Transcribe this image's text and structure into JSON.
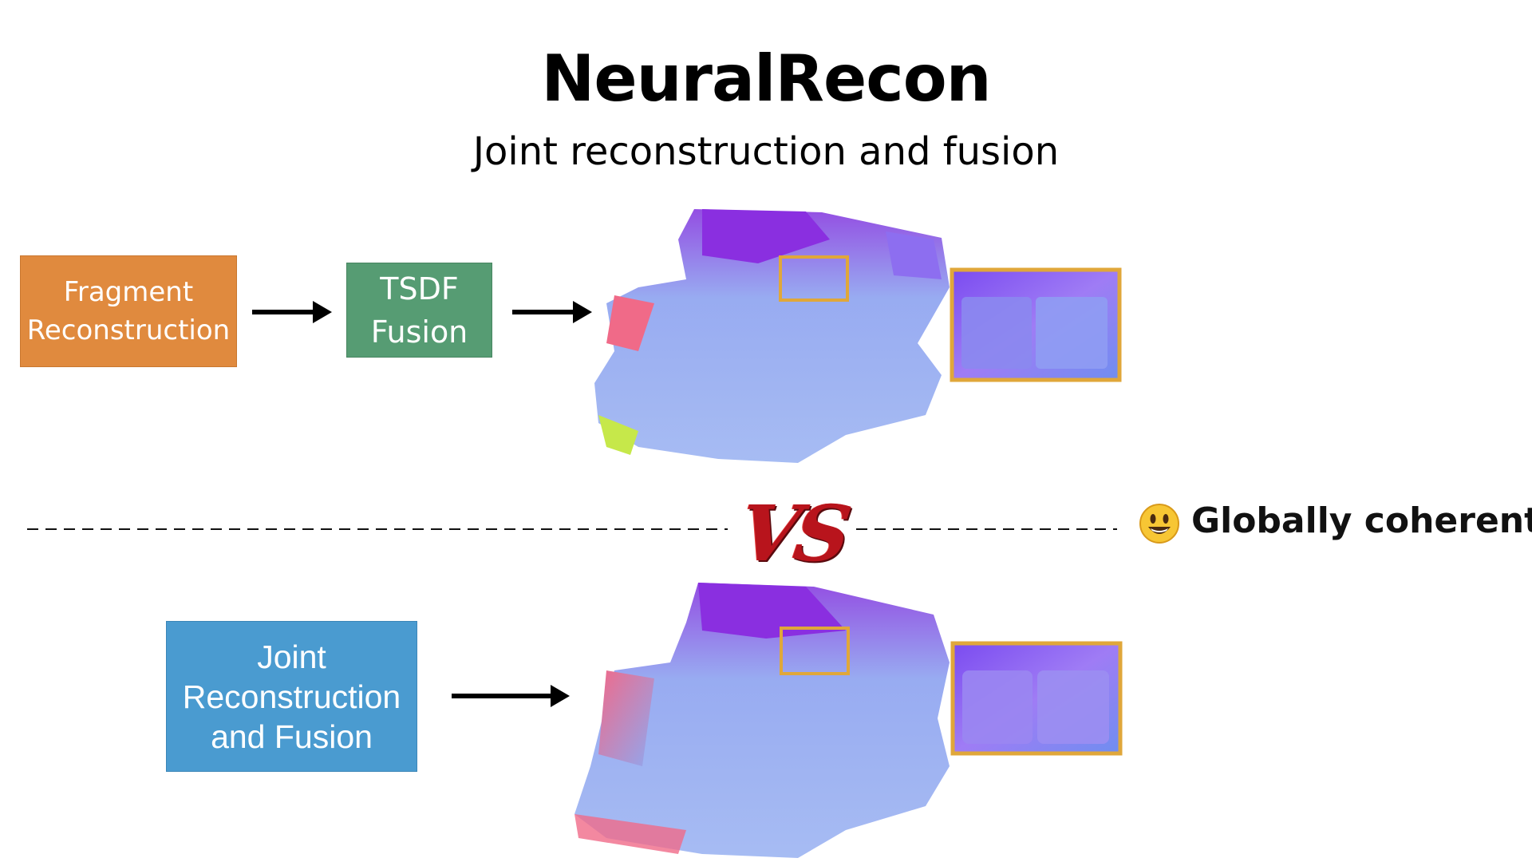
{
  "title": "NeuralRecon",
  "subtitle": "Joint reconstruction and fusion",
  "top_pipeline": {
    "step1": "Fragment\nReconstruction",
    "step2": "TSDF\nFusion"
  },
  "bottom_pipeline": {
    "step1": "Joint\nReconstruction\nand Fusion"
  },
  "separator": {
    "vs_label": "VS",
    "emoji_icon": "grinning-face-icon",
    "caption": "Globally coherent"
  },
  "colors": {
    "fragment_box": "#e08a3e",
    "tsdf_box": "#569c73",
    "joint_box": "#4a9bd0",
    "highlight_frame": "#e0a73a",
    "vs": "#b8141c"
  }
}
